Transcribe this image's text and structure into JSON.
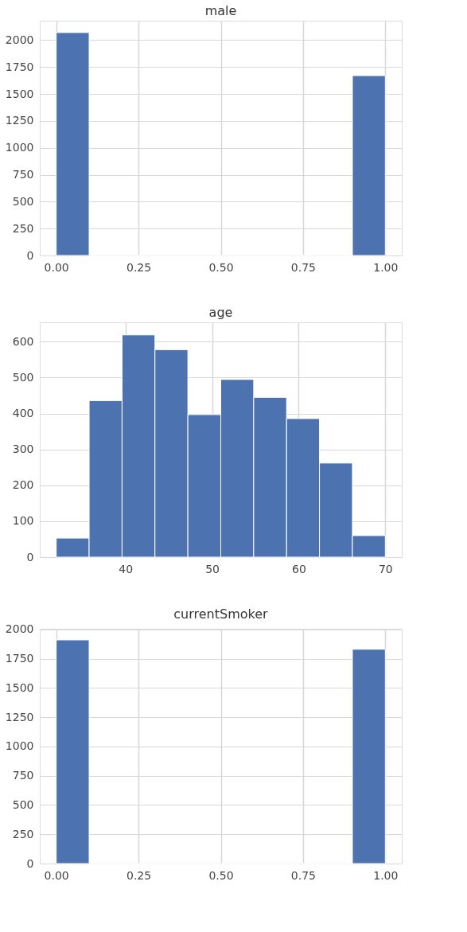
{
  "chart_data": [
    {
      "type": "histogram",
      "title": "male",
      "color": "#4c72b0",
      "grid": true,
      "bins": [
        0,
        0.1,
        0.2,
        0.3,
        0.4,
        0.5,
        0.6,
        0.7,
        0.8,
        0.9,
        1.0
      ],
      "values": [
        2070,
        0,
        0,
        0,
        0,
        0,
        0,
        0,
        0,
        1670
      ],
      "xlim": [
        -0.05,
        1.05
      ],
      "ylim": [
        0,
        2180
      ],
      "xticks": [
        {
          "value": 0,
          "label": "0.00"
        },
        {
          "value": 0.25,
          "label": "0.25"
        },
        {
          "value": 0.5,
          "label": "0.50"
        },
        {
          "value": 0.75,
          "label": "0.75"
        },
        {
          "value": 1,
          "label": "1.00"
        }
      ],
      "yticks": [
        0,
        250,
        500,
        750,
        1000,
        1250,
        1500,
        1750,
        2000
      ]
    },
    {
      "type": "histogram",
      "title": "age",
      "color": "#4c72b0",
      "grid": true,
      "bins": [
        32,
        35.8,
        39.6,
        43.4,
        47.2,
        51,
        54.8,
        58.6,
        62.4,
        66.2,
        70
      ],
      "values": [
        53,
        436,
        619,
        578,
        397,
        495,
        445,
        386,
        262,
        60
      ],
      "xlim": [
        30.1,
        71.9
      ],
      "ylim": [
        0,
        654
      ],
      "xticks": [
        40,
        50,
        60,
        70
      ],
      "yticks": [
        0,
        100,
        200,
        300,
        400,
        500,
        600
      ]
    },
    {
      "type": "histogram",
      "title": "currentSmoker",
      "color": "#4c72b0",
      "grid": true,
      "bins": [
        0,
        0.1,
        0.2,
        0.3,
        0.4,
        0.5,
        0.6,
        0.7,
        0.8,
        0.9,
        1.0
      ],
      "values": [
        1910,
        0,
        0,
        0,
        0,
        0,
        0,
        0,
        0,
        1830
      ],
      "xlim": [
        -0.05,
        1.05
      ],
      "ylim": [
        0,
        2005
      ],
      "xticks": [
        {
          "value": 0,
          "label": "0.00"
        },
        {
          "value": 0.25,
          "label": "0.25"
        },
        {
          "value": 0.5,
          "label": "0.50"
        },
        {
          "value": 0.75,
          "label": "0.75"
        },
        {
          "value": 1,
          "label": "1.00"
        }
      ],
      "yticks": [
        0,
        250,
        500,
        750,
        1000,
        1250,
        1500,
        1750,
        2000
      ]
    }
  ]
}
